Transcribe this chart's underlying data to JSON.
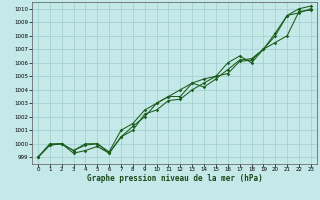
{
  "xlabel": "Graphe pression niveau de la mer (hPa)",
  "ylim": [
    998.5,
    1010.5
  ],
  "xlim": [
    -0.5,
    23.5
  ],
  "yticks": [
    999,
    1000,
    1001,
    1002,
    1003,
    1004,
    1005,
    1006,
    1007,
    1008,
    1009,
    1010
  ],
  "xticks": [
    0,
    1,
    2,
    3,
    4,
    5,
    6,
    7,
    8,
    9,
    10,
    11,
    12,
    13,
    14,
    15,
    16,
    17,
    18,
    19,
    20,
    21,
    22,
    23
  ],
  "bg_color": "#c5e8e8",
  "grid_color": "#9ecece",
  "line_color": "#1a5c1a",
  "series1": [
    999.0,
    1000.0,
    1000.0,
    999.5,
    1000.0,
    1000.0,
    999.3,
    1000.5,
    1001.0,
    1002.2,
    1002.5,
    1003.2,
    1003.3,
    1004.0,
    1004.5,
    1005.0,
    1006.0,
    1006.5,
    1006.0,
    1007.0,
    1008.0,
    1009.5,
    1010.0,
    1010.2
  ],
  "series2": [
    999.0,
    999.9,
    1000.0,
    999.3,
    999.5,
    999.8,
    999.3,
    1000.5,
    1001.3,
    1002.0,
    1003.0,
    1003.5,
    1004.0,
    1004.5,
    1004.8,
    1005.0,
    1005.2,
    1006.1,
    1006.2,
    1007.0,
    1008.2,
    1009.5,
    1009.7,
    1010.0
  ],
  "series3": [
    999.0,
    999.9,
    1000.0,
    999.5,
    999.9,
    1000.0,
    999.4,
    1001.0,
    1001.5,
    1002.5,
    1003.0,
    1003.5,
    1003.5,
    1004.5,
    1004.2,
    1004.8,
    1005.5,
    1006.2,
    1006.3,
    1007.0,
    1007.5,
    1008.0,
    1009.8,
    1009.9
  ]
}
